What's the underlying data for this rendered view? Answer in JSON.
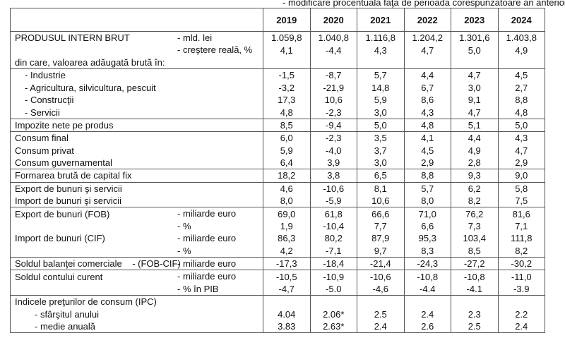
{
  "note": "- modificare procentuală faţă de perioada corespunzătoare an anterior, % -",
  "years": [
    "2019",
    "2020",
    "2021",
    "2022",
    "2023",
    "2024"
  ],
  "rows": [
    {
      "label": "PRODUSUL INTERN BRUT",
      "unit": "- mld. lei",
      "values": [
        "1.059,8",
        "1.040,8",
        "1.116,8",
        "1.204,2",
        "1.301,6",
        "1.403,8"
      ],
      "group_start": true
    },
    {
      "label": "",
      "unit": "- creştere reală, %",
      "values": [
        "4,1",
        "-4,4",
        "4,3",
        "4,7",
        "5,0",
        "4,9"
      ]
    },
    {
      "label": "din care, valoarea adăugată brută în:",
      "unit": "",
      "values": [
        "",
        "",
        "",
        "",
        "",
        ""
      ]
    },
    {
      "label": "- Industrie",
      "unit": "",
      "indent": 1,
      "values": [
        "-1,5",
        "-8,7",
        "5,7",
        "4,4",
        "4,7",
        "4,5"
      ],
      "group_start": true
    },
    {
      "label": "- Agricultura, silvicultura, pescuit",
      "unit": "",
      "indent": 1,
      "values": [
        "-3,2",
        "-21,9",
        "14,8",
        "6,7",
        "3,0",
        "2,7"
      ]
    },
    {
      "label": "- Construcţii",
      "unit": "",
      "indent": 1,
      "values": [
        "17,3",
        "10,6",
        "5,9",
        "8,6",
        "9,1",
        "8,8"
      ]
    },
    {
      "label": "- Servicii",
      "unit": "",
      "indent": 1,
      "values": [
        "4,8",
        "-2,3",
        "3,0",
        "4,3",
        "4,7",
        "4,8"
      ]
    },
    {
      "label": "Impozite nete pe produs",
      "unit": "",
      "values": [
        "8,5",
        "-9,4",
        "5,0",
        "4,8",
        "5,1",
        "5,0"
      ],
      "group_start": true
    },
    {
      "label": "Consum final",
      "unit": "",
      "values": [
        "6,0",
        "-2,3",
        "3,5",
        "4,1",
        "4,4",
        "4,3"
      ],
      "group_start": true
    },
    {
      "label": "Consum privat",
      "unit": "",
      "values": [
        "5,9",
        "-4,0",
        "3,7",
        "4,5",
        "4,9",
        "4,7"
      ]
    },
    {
      "label": "Consum guvernamental",
      "unit": "",
      "values": [
        "6,4",
        "3,9",
        "3,0",
        "2,9",
        "2,8",
        "2,9"
      ]
    },
    {
      "label": "Formarea brută de capital fix",
      "unit": "",
      "values": [
        "18,2",
        "3,8",
        "6,5",
        "8,8",
        "9,3",
        "9,0"
      ],
      "group_start": true
    },
    {
      "label": "Export de bunuri şi servicii",
      "unit": "",
      "values": [
        "4,6",
        "-10,6",
        "8,1",
        "5,7",
        "6,2",
        "5,8"
      ],
      "group_start": true
    },
    {
      "label": "Import de bunuri şi servicii",
      "unit": "",
      "values": [
        "8,0",
        "-5,9",
        "10,6",
        "8,0",
        "8,2",
        "7,5"
      ]
    },
    {
      "label": "Export de bunuri (FOB)",
      "unit": "- miliarde euro",
      "values": [
        "69,0",
        "61,8",
        "66,6",
        "71,0",
        "76,2",
        "81,6"
      ],
      "group_start": true
    },
    {
      "label": "",
      "unit": "- %",
      "values": [
        "1,9",
        "-10,4",
        "7,7",
        "6,6",
        "7,3",
        "7,1"
      ]
    },
    {
      "label": "Import de bunuri (CIF)",
      "unit": "- miliarde euro",
      "values": [
        "86,3",
        "80,2",
        "87,9",
        "95,3",
        "103,4",
        "111,8"
      ]
    },
    {
      "label": "",
      "unit": "- %",
      "values": [
        "4,2",
        "-7,1",
        "9,7",
        "8,3",
        "8,5",
        "8,2"
      ]
    },
    {
      "label": "Soldul balanţei comerciale    - (FOB-CIF)",
      "unit": "- miliarde euro",
      "values": [
        "-17,3",
        "-18,4",
        "-21,4",
        "-24,3",
        "-27,2",
        "-30,2"
      ],
      "group_start": true
    },
    {
      "label": "Soldul contului curent",
      "unit": "- miliarde euro",
      "values": [
        "-10,5",
        "-10,9",
        "-10,6",
        "-10,8",
        "-10,8",
        "-11,0"
      ],
      "group_start": true
    },
    {
      "label": "",
      "unit": "-  % în PIB",
      "values": [
        "-4,7",
        "-5.0",
        "-4,6",
        "-4.4",
        "-4.1",
        "-3.9"
      ]
    },
    {
      "label": "Indicele preţurilor de consum (IPC)",
      "unit": "",
      "values": [
        "",
        "",
        "",
        "",
        "",
        ""
      ],
      "group_start": true
    },
    {
      "label": "- sfârşitul anului",
      "unit": "",
      "indent": 2,
      "values": [
        "4.04",
        "2.06*",
        "2.5",
        "2.4",
        "2.3",
        "2.2"
      ]
    },
    {
      "label": "- medie anuală",
      "unit": "",
      "indent": 2,
      "values": [
        "3.83",
        "2.63*",
        "2.4",
        "2.6",
        "2.5",
        "2.4"
      ]
    }
  ]
}
